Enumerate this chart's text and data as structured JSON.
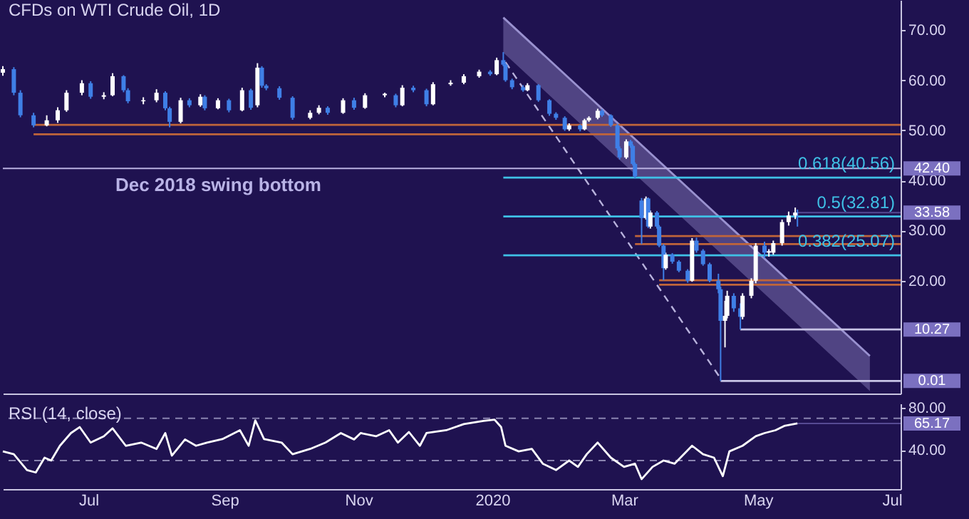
{
  "chart_data": [
    {
      "type": "candlestick",
      "title": "CFDs on WTI Crude Oil, 1D",
      "x": [
        "2019-05-23",
        "2019-05-28",
        "2019-05-31",
        "2019-06-06",
        "2019-06-12",
        "2019-06-17",
        "2019-06-21",
        "2019-06-28",
        "2019-07-02",
        "2019-07-08",
        "2019-07-12",
        "2019-07-17",
        "2019-07-19",
        "2019-07-26",
        "2019-08-01",
        "2019-08-05",
        "2019-08-07",
        "2019-08-12",
        "2019-08-16",
        "2019-08-21",
        "2019-08-23",
        "2019-08-29",
        "2019-09-03",
        "2019-09-09",
        "2019-09-13",
        "2019-09-16",
        "2019-09-18",
        "2019-09-20",
        "2019-09-26",
        "2019-10-02",
        "2019-10-10",
        "2019-10-14",
        "2019-10-18",
        "2019-10-25",
        "2019-10-30",
        "2019-11-04",
        "2019-11-13",
        "2019-11-18",
        "2019-11-21",
        "2019-11-26",
        "2019-12-02",
        "2019-12-05",
        "2019-12-13",
        "2019-12-19",
        "2019-12-26",
        "2019-12-31",
        "2020-01-03",
        "2020-01-06",
        "2020-01-07",
        "2020-01-10",
        "2020-01-15",
        "2020-01-17",
        "2020-01-22",
        "2020-01-27",
        "2020-01-30",
        "2020-02-03",
        "2020-02-05",
        "2020-02-10",
        "2020-02-12",
        "2020-02-14",
        "2020-02-18",
        "2020-02-20",
        "2020-02-24",
        "2020-02-27",
        "2020-02-28",
        "2020-03-02",
        "2020-03-04",
        "2020-03-05",
        "2020-03-06",
        "2020-03-09",
        "2020-03-11",
        "2020-03-12",
        "2020-03-13",
        "2020-03-16",
        "2020-03-17",
        "2020-03-19",
        "2020-03-20",
        "2020-03-23",
        "2020-03-26",
        "2020-03-30",
        "2020-04-01",
        "2020-04-03",
        "2020-04-06",
        "2020-04-09",
        "2020-04-13",
        "2020-04-14",
        "2020-04-16",
        "2020-04-17",
        "2020-04-20",
        "2020-04-23",
        "2020-04-24",
        "2020-04-28",
        "2020-04-30",
        "2020-05-04",
        "2020-05-06",
        "2020-05-08",
        "2020-05-12",
        "2020-05-15",
        "2020-05-18",
        "2020-05-19"
      ],
      "ohlc": [
        [
          61.5,
          62.8,
          60.9,
          62.2
        ],
        [
          62.2,
          62.6,
          57,
          57.5
        ],
        [
          57.5,
          58,
          52.6,
          53
        ],
        [
          53,
          53.5,
          50.6,
          51
        ],
        [
          51,
          53,
          50.8,
          52
        ],
        [
          52,
          54.6,
          51.5,
          54
        ],
        [
          54,
          58,
          53.7,
          57.5
        ],
        [
          57.5,
          60,
          57,
          59.4
        ],
        [
          59.4,
          59.8,
          56.3,
          56.7
        ],
        [
          56.7,
          57.6,
          56.2,
          57
        ],
        [
          57,
          61.4,
          56.8,
          60.8
        ],
        [
          60.8,
          61,
          57.6,
          58
        ],
        [
          58,
          58.4,
          55.4,
          55.8
        ],
        [
          55.8,
          56.6,
          55.2,
          56
        ],
        [
          56,
          58.2,
          55.6,
          57.5
        ],
        [
          57.5,
          57.8,
          54,
          54.4
        ],
        [
          54.4,
          54.7,
          50.6,
          51.7
        ],
        [
          51.7,
          56.5,
          51.4,
          56
        ],
        [
          56,
          56.4,
          54.6,
          55
        ],
        [
          55,
          57.2,
          54.7,
          56.7
        ],
        [
          56.7,
          57,
          54,
          54.4
        ],
        [
          54.4,
          56.4,
          54.2,
          56
        ],
        [
          56,
          56.3,
          53.6,
          54
        ],
        [
          54,
          58.5,
          53.8,
          58
        ],
        [
          58,
          58.3,
          54.1,
          54.5
        ],
        [
          55,
          63.4,
          54.6,
          62.5
        ],
        [
          62.5,
          62.8,
          58.5,
          58.9
        ],
        [
          58.9,
          59.2,
          58,
          58.4
        ],
        [
          58.4,
          58.8,
          56.1,
          56.5
        ],
        [
          56.5,
          56.8,
          52.1,
          52.5
        ],
        [
          52.5,
          54,
          52.2,
          53.5
        ],
        [
          53.5,
          55,
          53.2,
          54.5
        ],
        [
          54.5,
          54.8,
          53.1,
          53.5
        ],
        [
          53.5,
          56.4,
          53.3,
          56
        ],
        [
          56,
          56.5,
          54.1,
          54.5
        ],
        [
          54.5,
          57.4,
          54.3,
          57
        ],
        [
          57,
          57.5,
          56.6,
          57.3
        ],
        [
          57,
          57.3,
          54.6,
          55
        ],
        [
          55,
          59,
          54.8,
          58.5
        ],
        [
          58.5,
          58.9,
          57.6,
          58
        ],
        [
          58,
          58.3,
          54.8,
          55.2
        ],
        [
          55.2,
          59.6,
          55,
          59.2
        ],
        [
          59.2,
          60,
          58.9,
          59.5
        ],
        [
          59.5,
          61.2,
          59.2,
          60.8
        ],
        [
          60.8,
          62.1,
          60.5,
          61.7
        ],
        [
          61.7,
          62,
          60.9,
          61.2
        ],
        [
          61.2,
          64.5,
          61,
          64
        ],
        [
          64,
          65.6,
          62.8,
          63.1
        ],
        [
          63.1,
          63.4,
          59.7,
          60
        ],
        [
          60,
          60.3,
          58.2,
          58.6
        ],
        [
          58.6,
          59,
          57.7,
          58
        ],
        [
          58,
          59.4,
          57.8,
          59
        ],
        [
          59,
          59.2,
          55.7,
          56
        ],
        [
          56,
          56.2,
          52.9,
          53.3
        ],
        [
          53.3,
          53.6,
          52.1,
          52.5
        ],
        [
          52.5,
          52.8,
          49.9,
          50.2
        ],
        [
          50.2,
          51.4,
          49.9,
          51
        ],
        [
          51,
          51.2,
          49.8,
          50.2
        ],
        [
          50.2,
          52.3,
          50,
          52
        ],
        [
          52,
          52.8,
          51.7,
          52.5
        ],
        [
          52.5,
          54.3,
          52.2,
          53.9
        ],
        [
          53.9,
          54.2,
          52.7,
          53
        ],
        [
          53,
          53.2,
          50.7,
          51
        ],
        [
          51,
          51.3,
          46,
          46.4
        ],
        [
          46.4,
          46.8,
          44.2,
          44.6
        ],
        [
          44.6,
          48.2,
          44.3,
          47.8
        ],
        [
          47.8,
          48.1,
          46.5,
          46.9
        ],
        [
          46.9,
          47.2,
          43,
          43.3
        ],
        [
          43.3,
          43.6,
          40.4,
          40.8
        ],
        [
          36,
          36.5,
          27.3,
          32.5
        ],
        [
          32.5,
          36.8,
          32.2,
          36.4
        ],
        [
          36.4,
          36.6,
          30.5,
          30.8
        ],
        [
          30.8,
          34,
          30.4,
          33.6
        ],
        [
          33.6,
          33.9,
          30.4,
          30.8
        ],
        [
          30.8,
          31.1,
          26.7,
          27
        ],
        [
          27,
          27.3,
          20.1,
          22.5
        ],
        [
          22.5,
          25.6,
          22.2,
          25.2
        ],
        [
          25.2,
          25.5,
          23.4,
          23.8
        ],
        [
          23.8,
          24.1,
          21.7,
          22
        ],
        [
          22,
          22.3,
          19.6,
          20
        ],
        [
          20,
          28.5,
          19.8,
          28
        ],
        [
          28,
          28.6,
          25.6,
          26
        ],
        [
          26,
          26.3,
          23,
          23.3
        ],
        [
          23.3,
          23.6,
          19.7,
          20
        ],
        [
          20,
          21.4,
          17.5,
          18.3
        ],
        [
          18.3,
          18.8,
          0.01,
          12
        ],
        [
          12,
          16,
          6.7,
          13
        ],
        [
          13,
          18,
          12.5,
          17
        ],
        [
          17,
          17.5,
          13.8,
          14.5
        ],
        [
          14.5,
          15.5,
          10.27,
          12.8
        ],
        [
          12.8,
          17.5,
          12.3,
          17
        ],
        [
          17,
          20.5,
          16.5,
          20
        ],
        [
          20,
          27.5,
          19.5,
          27
        ],
        [
          27,
          27.8,
          24.5,
          25.6
        ],
        [
          25.6,
          26.3,
          24.8,
          25.9
        ],
        [
          25.6,
          28,
          25.2,
          27.5
        ],
        [
          27.5,
          32.2,
          27,
          31.7
        ],
        [
          31.7,
          33.8,
          31,
          33
        ],
        [
          33,
          34.6,
          32.3,
          33.6
        ],
        [
          33.6,
          34.2,
          30.8,
          33.58
        ]
      ],
      "xlim": [
        "2019-05-23",
        "2020-07-05"
      ],
      "ylim": [
        -2.5,
        76
      ],
      "yticks": [
        {
          "value": 20,
          "label": "20.00"
        },
        {
          "value": 30,
          "label": "30.00"
        },
        {
          "value": 40,
          "label": "40.00"
        },
        {
          "value": 50,
          "label": "50.00"
        },
        {
          "value": 60,
          "label": "60.00"
        },
        {
          "value": 70,
          "label": "70.00"
        }
      ],
      "tick_labels": "y",
      "series": [
        {
          "type": "line",
          "color": "#9a92d0",
          "x": [
            "2020-01-06",
            "2020-06-21"
          ],
          "values": [
            72.5,
            5.0
          ],
          "upper": [
            72.5,
            5.0
          ],
          "lower": [
            65.5,
            -2.0
          ]
        },
        {
          "type": "line",
          "color": "#b8b2dc",
          "line_style": "dashed",
          "x": [
            "2020-01-07",
            "2020-04-14"
          ],
          "values": [
            63.6,
            0.5
          ]
        },
        {
          "type": "line",
          "color": "#c0653a",
          "x": [
            "2019-06-06",
            "2020-07-05"
          ],
          "values": [
            51.1,
            51.1
          ]
        },
        {
          "type": "line",
          "color": "#c0653a",
          "x": [
            "2019-06-06",
            "2020-07-05"
          ],
          "values": [
            49.2,
            49.2
          ]
        },
        {
          "type": "line",
          "color": "#c0653a",
          "x": [
            "2020-03-06",
            "2020-07-05"
          ],
          "values": [
            28.9,
            28.9
          ]
        },
        {
          "type": "line",
          "color": "#c0653a",
          "x": [
            "2020-03-06",
            "2020-07-05"
          ],
          "values": [
            27.3,
            27.3
          ]
        },
        {
          "type": "line",
          "color": "#c0653a",
          "x": [
            "2020-03-17",
            "2020-07-05"
          ],
          "values": [
            20.1,
            20.1
          ]
        },
        {
          "type": "line",
          "color": "#c0653a",
          "x": [
            "2020-03-17",
            "2020-07-05"
          ],
          "values": [
            19.2,
            19.2
          ]
        },
        {
          "type": "line",
          "name": "0.618(40.56)",
          "color": "#3fc1e6",
          "x": [
            "2020-01-06",
            "2020-07-05"
          ],
          "values": [
            40.56,
            40.56
          ]
        },
        {
          "type": "line",
          "name": "0.5(32.81)",
          "color": "#3fc1e6",
          "x": [
            "2020-01-06",
            "2020-07-05"
          ],
          "values": [
            32.81,
            32.81
          ]
        },
        {
          "type": "line",
          "name": "0.382(25.07)",
          "color": "#3fc1e6",
          "x": [
            "2020-01-06",
            "2020-07-05"
          ],
          "values": [
            25.07,
            25.07
          ]
        },
        {
          "type": "line",
          "color": "#c8c4e6",
          "x": [
            "2020-04-23",
            "2020-07-05"
          ],
          "values": [
            10.27,
            10.27
          ]
        },
        {
          "type": "line",
          "color": "#c8c4e6",
          "x": [
            "2020-04-14",
            "2020-07-05"
          ],
          "values": [
            0.01,
            0.01
          ]
        }
      ],
      "ref_lines": [
        {
          "axis": "y",
          "value": 42.4,
          "label": "42.40",
          "color": "#b9b0e0"
        }
      ],
      "annotations": [
        "Dec 2018 swing bottom",
        {
          "text": "33.58",
          "x": "2020-05-19",
          "y": 33.58
        },
        {
          "text": "10.27",
          "x": "2020-07-05",
          "y": 10.27
        },
        {
          "text": "0.01",
          "x": "2020-07-05",
          "y": 0.01
        }
      ]
    },
    {
      "type": "line",
      "title": "RSI (14, close)",
      "x": [
        "2019-05-23",
        "2019-05-28",
        "2019-06-03",
        "2019-06-07",
        "2019-06-11",
        "2019-06-14",
        "2019-06-18",
        "2019-06-23",
        "2019-06-27",
        "2019-07-02",
        "2019-07-08",
        "2019-07-12",
        "2019-07-18",
        "2019-07-25",
        "2019-08-01",
        "2019-08-05",
        "2019-08-08",
        "2019-08-14",
        "2019-08-19",
        "2019-08-24",
        "2019-08-31",
        "2019-09-08",
        "2019-09-12",
        "2019-09-15",
        "2019-09-19",
        "2019-09-27",
        "2019-10-02",
        "2019-10-10",
        "2019-10-17",
        "2019-10-24",
        "2019-10-30",
        "2019-11-02",
        "2019-11-09",
        "2019-11-15",
        "2019-11-19",
        "2019-11-24",
        "2019-11-29",
        "2019-12-02",
        "2019-12-11",
        "2019-12-19",
        "2019-12-28",
        "2020-01-02",
        "2020-01-05",
        "2020-01-07",
        "2020-01-13",
        "2020-01-19",
        "2020-01-24",
        "2020-01-30",
        "2020-02-05",
        "2020-02-09",
        "2020-02-13",
        "2020-02-18",
        "2020-02-24",
        "2020-03-01",
        "2020-03-06",
        "2020-03-09",
        "2020-03-14",
        "2020-03-19",
        "2020-03-24",
        "2020-04-01",
        "2020-04-06",
        "2020-04-11",
        "2020-04-15",
        "2020-04-18",
        "2020-04-24",
        "2020-04-30",
        "2020-05-04",
        "2020-05-09",
        "2020-05-13",
        "2020-05-19"
      ],
      "series": [
        {
          "color": "#ffffff",
          "values": [
            38.7,
            36,
            21,
            18.7,
            32.7,
            30,
            44,
            56,
            61.7,
            47,
            53,
            60.5,
            44,
            47,
            41,
            56,
            34.6,
            50,
            44,
            47,
            50.3,
            58.7,
            44,
            68,
            50.3,
            47,
            36,
            41,
            47,
            56,
            50,
            56,
            53,
            58.7,
            47,
            57,
            44,
            56,
            58.7,
            64.5,
            67.5,
            68.7,
            61.7,
            44,
            38.7,
            41,
            27,
            21,
            30,
            24,
            36,
            47,
            32.7,
            24,
            27,
            12.4,
            24,
            30,
            27,
            44,
            36,
            32.7,
            15.3,
            38.7,
            44,
            53,
            56,
            58.7,
            62.8,
            65.17
          ]
        }
      ],
      "xlim": [
        "2019-05-23",
        "2020-07-05"
      ],
      "ylim": [
        3,
        84
      ],
      "xticks": [
        {
          "value": "2019-07-01",
          "label": "Jul"
        },
        {
          "value": "2019-09-01",
          "label": "Sep"
        },
        {
          "value": "2019-11-01",
          "label": "Nov"
        },
        {
          "value": "2020-01-01",
          "label": "2020"
        },
        {
          "value": "2020-03-01",
          "label": "Mar"
        },
        {
          "value": "2020-05-01",
          "label": "May"
        },
        {
          "value": "2020-07-01",
          "label": "Jul"
        }
      ],
      "yticks": [
        {
          "value": 40,
          "label": "40.00"
        },
        {
          "value": 80,
          "label": "80.00"
        }
      ],
      "ref_lines": [
        {
          "axis": "y",
          "value": 70,
          "color": "#8a84b0",
          "line_style": "dashed"
        },
        {
          "axis": "y",
          "value": 30,
          "color": "#8a84b0",
          "line_style": "dashed"
        }
      ],
      "annotations": [
        {
          "text": "65.17",
          "x": "2020-05-19",
          "y": 65.17
        }
      ]
    }
  ]
}
